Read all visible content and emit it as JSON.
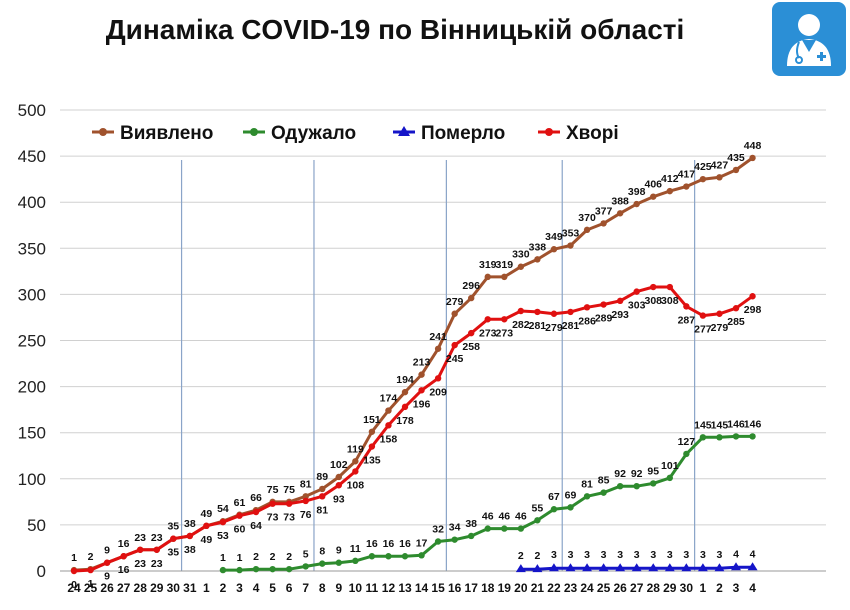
{
  "chart_data": {
    "type": "line",
    "title": "Динаміка COVID-19 по Вінницькій області",
    "categories": [
      "24",
      "25",
      "26",
      "27",
      "28",
      "29",
      "30",
      "31",
      "1",
      "2",
      "3",
      "4",
      "5",
      "6",
      "7",
      "8",
      "9",
      "10",
      "11",
      "12",
      "13",
      "14",
      "15",
      "16",
      "17",
      "18",
      "19",
      "20",
      "21",
      "22",
      "23",
      "24",
      "25",
      "26",
      "27",
      "28",
      "29",
      "30",
      "1",
      "2",
      "3",
      "4"
    ],
    "series": [
      {
        "name": "Виявлено",
        "color": "#a0522d",
        "values": [
          1,
          2,
          9,
          16,
          23,
          23,
          35,
          38,
          49,
          54,
          61,
          66,
          75,
          75,
          81,
          89,
          102,
          119,
          151,
          174,
          194,
          213,
          241,
          279,
          296,
          319,
          319,
          330,
          338,
          349,
          353,
          370,
          377,
          388,
          398,
          406,
          412,
          417,
          425,
          427,
          435,
          448
        ]
      },
      {
        "name": "Одужало",
        "color": "#2e8b2e",
        "values": [
          null,
          null,
          null,
          null,
          null,
          null,
          null,
          null,
          null,
          1,
          1,
          2,
          2,
          2,
          5,
          8,
          9,
          11,
          16,
          16,
          16,
          17,
          32,
          34,
          38,
          46,
          46,
          46,
          55,
          67,
          69,
          81,
          85,
          92,
          92,
          95,
          101,
          127,
          145,
          145,
          146,
          146
        ]
      },
      {
        "name": "Померло",
        "color": "#1515c8",
        "values": [
          null,
          null,
          null,
          null,
          null,
          null,
          null,
          null,
          null,
          null,
          null,
          null,
          null,
          null,
          null,
          null,
          null,
          null,
          null,
          null,
          null,
          null,
          null,
          null,
          null,
          null,
          null,
          2,
          2,
          3,
          3,
          3,
          3,
          3,
          3,
          3,
          3,
          3,
          3,
          3,
          4,
          4
        ]
      },
      {
        "name": "Хворі",
        "color": "#e01010",
        "values": [
          0,
          1,
          9,
          16,
          23,
          23,
          35,
          38,
          49,
          53,
          60,
          64,
          73,
          73,
          76,
          81,
          93,
          108,
          135,
          158,
          178,
          196,
          209,
          245,
          258,
          273,
          273,
          282,
          281,
          279,
          281,
          286,
          289,
          293,
          303,
          308,
          308,
          287,
          277,
          279,
          285,
          298
        ]
      }
    ],
    "y_ticks": [
      "0",
      "50",
      "100",
      "150",
      "200",
      "250",
      "300",
      "350",
      "400",
      "450",
      "500"
    ],
    "ylim": [
      0,
      500
    ],
    "legend_position": "top",
    "week_separators_after": [
      "30",
      "7",
      "15",
      "22",
      "30"
    ]
  }
}
